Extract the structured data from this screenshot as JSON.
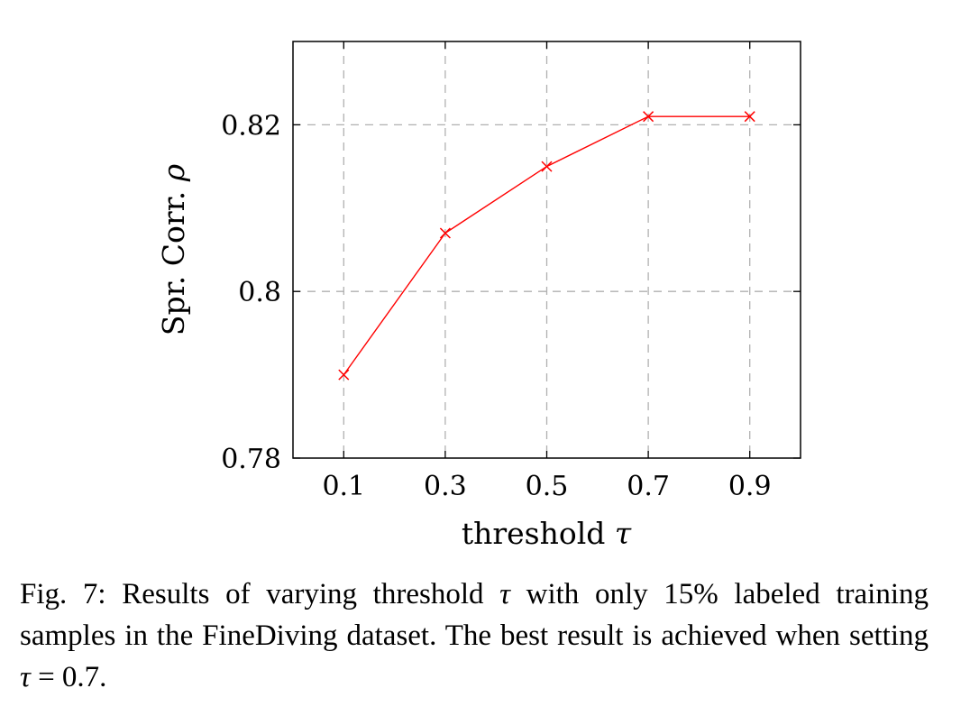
{
  "chart_data": {
    "type": "line",
    "title": "",
    "x": [
      0.1,
      0.3,
      0.5,
      0.7,
      0.9
    ],
    "x_tick_labels": [
      "0.1",
      "0.3",
      "0.5",
      "0.7",
      "0.9"
    ],
    "series": [
      {
        "values": [
          0.79,
          0.807,
          0.815,
          0.821,
          0.821
        ],
        "color": "#ff0000",
        "marker": "x"
      }
    ],
    "y_ticks": [
      0.78,
      0.8,
      0.82
    ],
    "y_tick_labels": [
      "0.78",
      "0.8",
      "0.82"
    ],
    "xlabel_text": "threshold ",
    "xlabel_symbol": "τ",
    "ylabel_text": "Spr. Corr. ",
    "ylabel_symbol": "ρ",
    "xlim": [
      0.0,
      1.0
    ],
    "ylim": [
      0.78,
      0.83
    ],
    "grid": true,
    "grid_style": "dashed",
    "grid_color": "#b0b0b0"
  },
  "caption": {
    "part1": "Fig. 7: Results of varying threshold ",
    "symbol1": "τ",
    "part2": " with only 15% labeled training samples in the FineDiving dataset. The best result is achieved when setting ",
    "symbol2": "τ",
    "part3": " = 0.7."
  }
}
